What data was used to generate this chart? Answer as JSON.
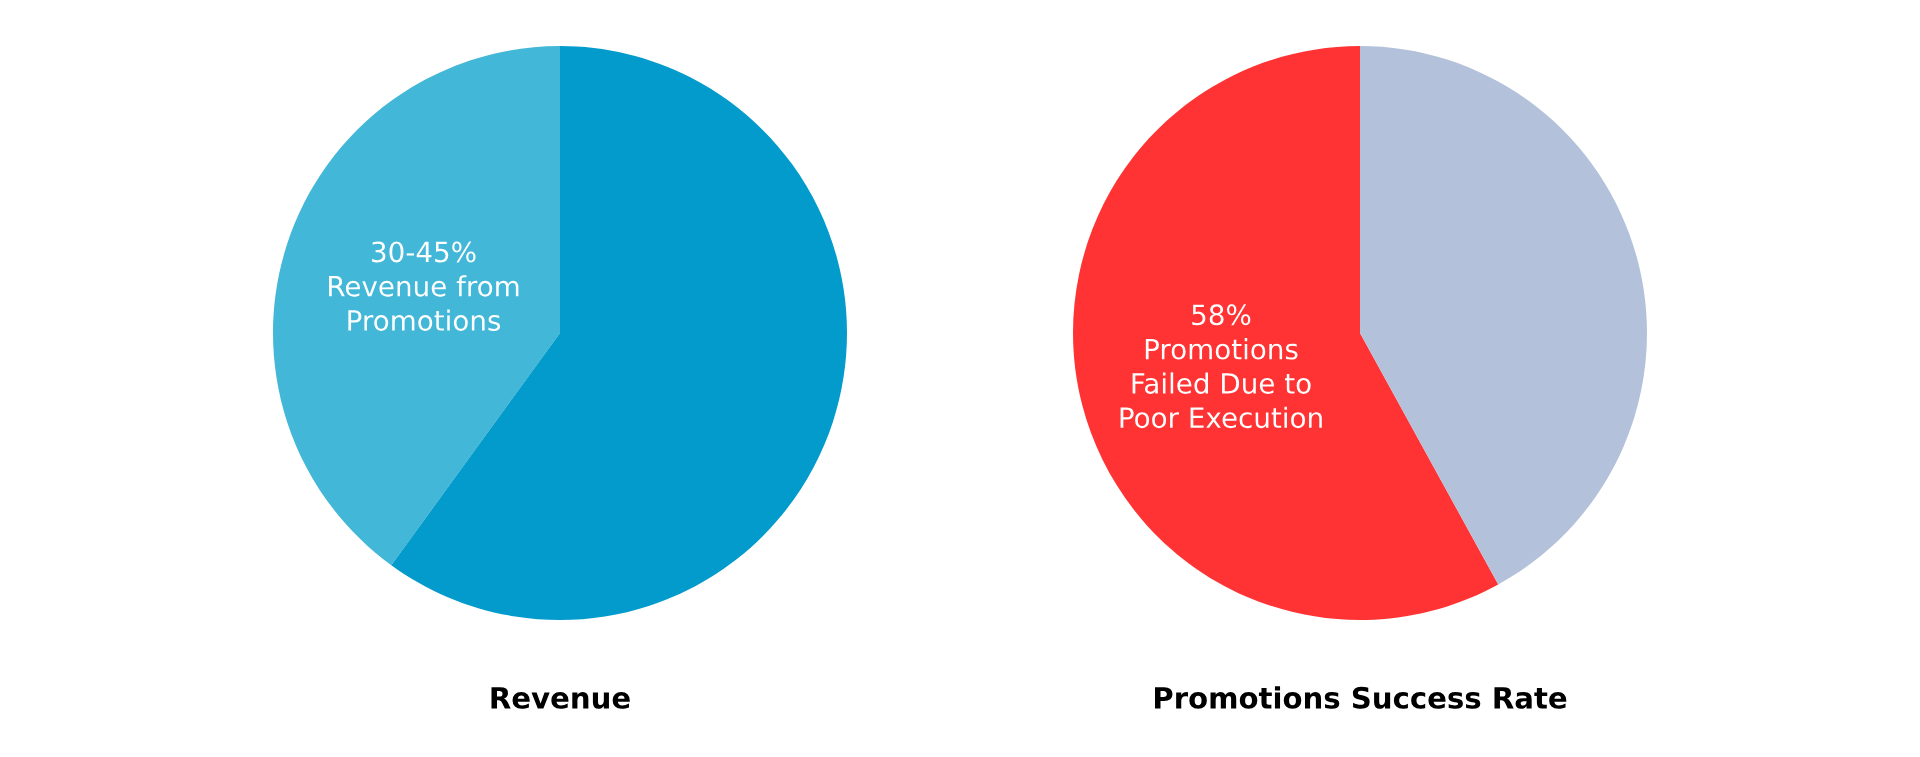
{
  "chart_data": [
    {
      "type": "pie",
      "title": "Revenue",
      "categories": [
        "30-45%\nRevenue from\nPromotions",
        null
      ],
      "values": [
        40,
        60
      ],
      "colors": [
        "#42b7d8",
        "#029bcb"
      ]
    },
    {
      "type": "pie",
      "title": "Promotions Success Rate",
      "categories": [
        "58%\nPromotions\nFailed Due to\nPoor Execution",
        null
      ],
      "values": [
        58,
        42
      ],
      "colors": [
        "#ff3333",
        "#b3c1da"
      ]
    }
  ]
}
